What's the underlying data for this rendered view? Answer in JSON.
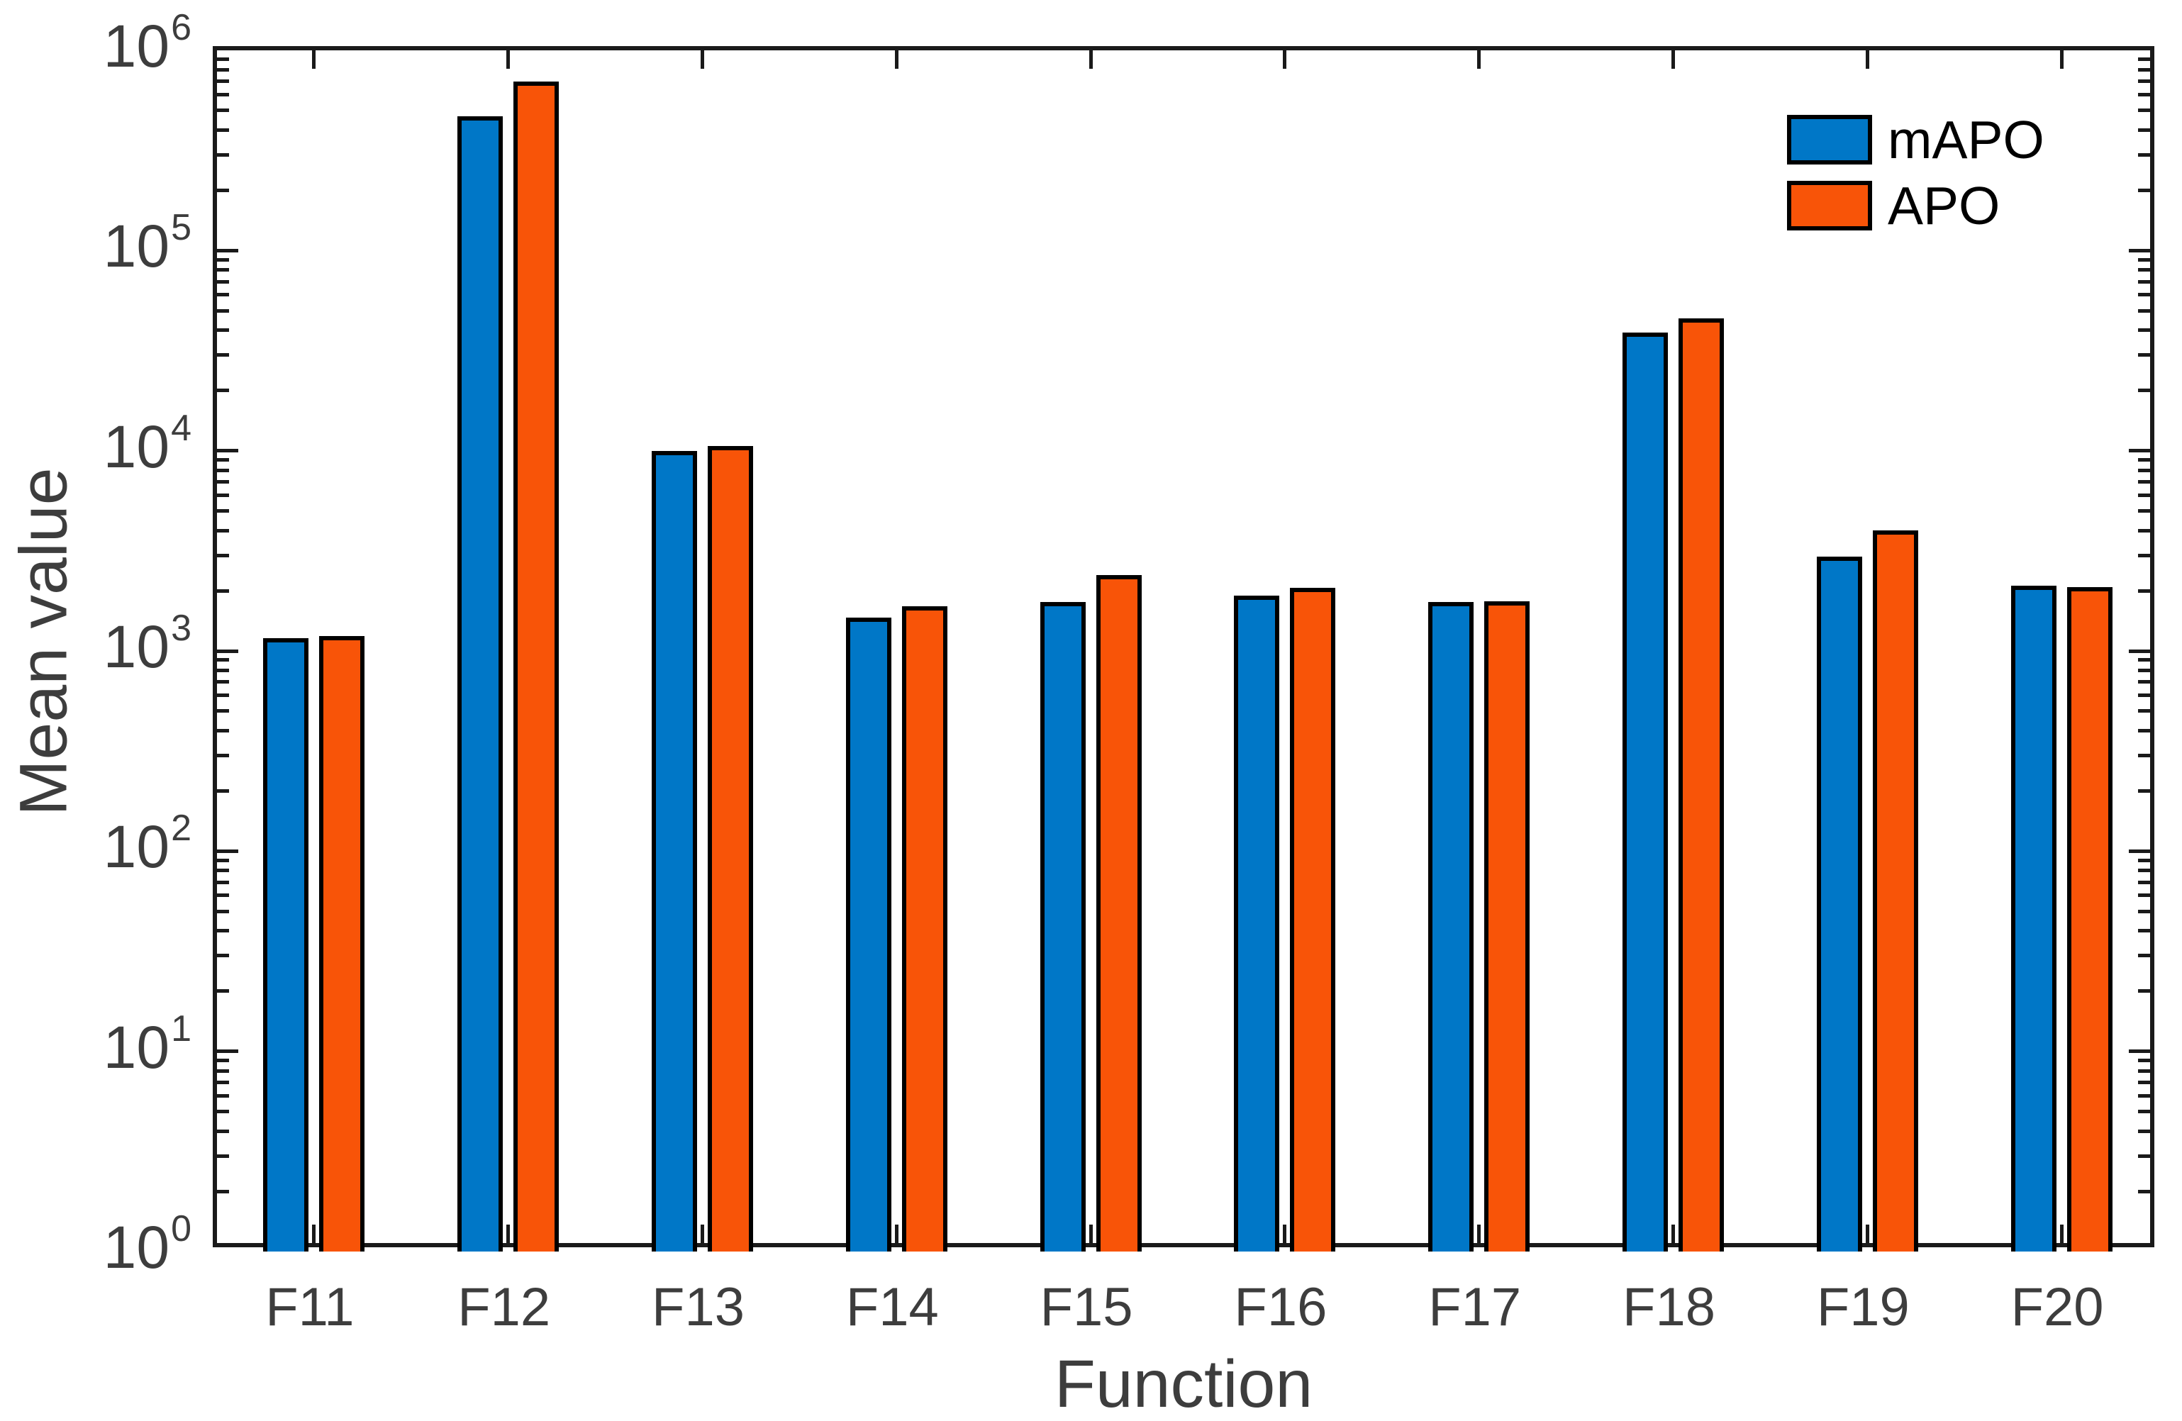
{
  "chart_data": {
    "type": "bar",
    "title": "",
    "xlabel": "Function",
    "ylabel": "Mean value",
    "yscale": "log",
    "ylim": [
      1,
      1000000
    ],
    "y_tick_exponents": [
      0,
      1,
      2,
      3,
      4,
      5,
      6
    ],
    "y_tick_base": "10",
    "grid": false,
    "legend_position": "northeast-inside",
    "categories": [
      "F11",
      "F12",
      "F13",
      "F14",
      "F15",
      "F16",
      "F17",
      "F18",
      "F19",
      "F20"
    ],
    "series": [
      {
        "name": "mAPO",
        "color": "#0077c7",
        "values": [
          1160,
          470000,
          10000,
          1470,
          1750,
          1890,
          1750,
          39000,
          2960,
          2110
        ]
      },
      {
        "name": "APO",
        "color": "#f85408",
        "values": [
          1190,
          700000,
          10600,
          1670,
          2400,
          2070,
          1770,
          46000,
          4000,
          2080
        ]
      }
    ]
  },
  "style": {
    "bar_outline_color": "#000000",
    "spine_color": "#1a1a1a",
    "tick_label_color": "#3d3d3d",
    "legend_text_color": "#000000",
    "background_color": "#ffffff"
  }
}
